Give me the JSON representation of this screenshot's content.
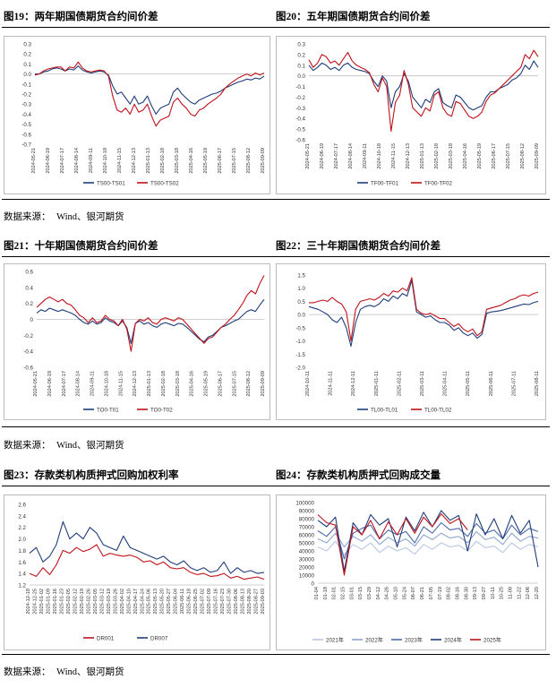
{
  "panels": [
    {
      "title": "图19：两年期国债期货合约间价差"
    },
    {
      "title": "图20：五年期国债期货合约间价差"
    },
    {
      "title": "图21：十年期国债期货合约间价差"
    },
    {
      "title": "图22：三十年期国债期货合约间价差"
    },
    {
      "title": "图23：存款类机构质押式回购加权利率"
    },
    {
      "title": "图24：存款类机构质押式回购成交量"
    }
  ],
  "sources": [
    {
      "label": "数据来源：",
      "text": "Wind、银河期货"
    },
    {
      "label": "数据来源：",
      "text": "Wind、银河期货"
    },
    {
      "label": "数据来源：",
      "text": "Wind、银河期货"
    }
  ],
  "colors": {
    "blue": "#1f3d7a",
    "red": "#c0121a",
    "lightblue": "#b8c7e3",
    "midblue": "#8ea6cf"
  },
  "chart_data": [
    {
      "type": "line",
      "title": "",
      "x_ticks": [
        "2024-05-21",
        "2024-06-19",
        "2024-07-17",
        "2024-08-14",
        "2024-09-11",
        "2024-10-18",
        "2024-11-15",
        "2024-12-13",
        "2025-01-13",
        "2025-02-18",
        "2025-03-18",
        "2025-04-16",
        "2025-05-19",
        "2025-06-17",
        "2025-07-15",
        "2025-08-12",
        "2025-09-09"
      ],
      "ylim": [
        -0.7,
        0.3
      ],
      "y_ticks": [
        "-0.7",
        "-0.6",
        "-0.5",
        "-0.4",
        "-0.3",
        "-0.2",
        "-0.1",
        "0.0",
        "0.1",
        "0.2",
        "0.3"
      ],
      "legend": "bottom",
      "series": [
        {
          "name": "TS00-TS01",
          "color": "#1f3d7a",
          "values": [
            0.0,
            0.0,
            0.02,
            0.03,
            0.05,
            0.06,
            0.05,
            0.03,
            0.05,
            0.04,
            0.08,
            0.04,
            0.02,
            0.01,
            0.02,
            0.03,
            0.02,
            -0.01,
            -0.12,
            -0.2,
            -0.18,
            -0.24,
            -0.3,
            -0.22,
            -0.3,
            -0.28,
            -0.22,
            -0.32,
            -0.4,
            -0.34,
            -0.32,
            -0.3,
            -0.18,
            -0.14,
            -0.2,
            -0.24,
            -0.28,
            -0.3,
            -0.26,
            -0.24,
            -0.22,
            -0.2,
            -0.19,
            -0.17,
            -0.14,
            -0.12,
            -0.1,
            -0.08,
            -0.07,
            -0.05,
            -0.06,
            -0.04,
            -0.05,
            -0.02
          ]
        },
        {
          "name": "TS00-TS02",
          "color": "#c0121a",
          "values": [
            -0.01,
            0.0,
            0.03,
            0.05,
            0.06,
            0.07,
            0.07,
            0.03,
            0.07,
            0.06,
            0.12,
            0.06,
            0.03,
            0.02,
            0.03,
            0.04,
            0.03,
            -0.02,
            -0.22,
            -0.36,
            -0.38,
            -0.34,
            -0.4,
            -0.3,
            -0.38,
            -0.36,
            -0.3,
            -0.42,
            -0.52,
            -0.46,
            -0.44,
            -0.42,
            -0.28,
            -0.24,
            -0.3,
            -0.34,
            -0.4,
            -0.42,
            -0.36,
            -0.34,
            -0.3,
            -0.27,
            -0.24,
            -0.2,
            -0.14,
            -0.1,
            -0.07,
            -0.04,
            -0.02,
            0.0,
            -0.02,
            0.01,
            -0.01,
            0.01
          ]
        }
      ]
    },
    {
      "type": "line",
      "title": "",
      "x_ticks": [
        "2024-05-21",
        "2024-06-19",
        "2024-07-17",
        "2024-08-14",
        "2024-09-11",
        "2024-10-18",
        "2024-11-15",
        "2024-12-13",
        "2025-01-13",
        "2025-02-18",
        "2025-03-18",
        "2025-04-16",
        "2025-05-19",
        "2025-06-17",
        "2025-07-15",
        "2025-08-12",
        "2025-09-09"
      ],
      "ylim": [
        -0.6,
        0.3
      ],
      "y_ticks": [
        "-0.6",
        "-0.5",
        "-0.4",
        "-0.3",
        "-0.2",
        "-0.1",
        "0.0",
        "0.1",
        "0.2",
        "0.3"
      ],
      "legend": "bottom",
      "series": [
        {
          "name": "TF00-TF01",
          "color": "#1f3d7a",
          "values": [
            0.1,
            0.05,
            0.08,
            0.12,
            0.1,
            0.06,
            0.08,
            0.05,
            0.1,
            0.12,
            0.08,
            0.06,
            0.05,
            0.04,
            0.02,
            -0.05,
            -0.1,
            0.0,
            -0.05,
            -0.3,
            -0.15,
            -0.1,
            0.02,
            -0.05,
            -0.2,
            -0.25,
            -0.3,
            -0.22,
            -0.25,
            -0.15,
            -0.12,
            -0.25,
            -0.28,
            -0.3,
            -0.18,
            -0.2,
            -0.25,
            -0.3,
            -0.32,
            -0.3,
            -0.28,
            -0.2,
            -0.15,
            -0.15,
            -0.12,
            -0.1,
            -0.08,
            -0.04,
            -0.02,
            0.02,
            0.1,
            0.06,
            0.14,
            0.08
          ]
        },
        {
          "name": "TF00-TF02",
          "color": "#c0121a",
          "values": [
            0.15,
            0.08,
            0.12,
            0.2,
            0.18,
            0.12,
            0.14,
            0.1,
            0.16,
            0.22,
            0.14,
            0.1,
            0.08,
            0.06,
            0.03,
            -0.08,
            -0.15,
            -0.02,
            -0.1,
            -0.52,
            -0.25,
            -0.18,
            0.05,
            -0.08,
            -0.3,
            -0.34,
            -0.38,
            -0.3,
            -0.33,
            -0.18,
            -0.15,
            -0.3,
            -0.36,
            -0.38,
            -0.24,
            -0.26,
            -0.32,
            -0.38,
            -0.4,
            -0.38,
            -0.34,
            -0.24,
            -0.18,
            -0.16,
            -0.12,
            -0.08,
            -0.04,
            0.0,
            0.04,
            0.08,
            0.2,
            0.16,
            0.24,
            0.18
          ]
        }
      ]
    },
    {
      "type": "line",
      "title": "",
      "x_ticks": [
        "2024-05-21",
        "2024-06-19",
        "2024-07-17",
        "2024-08-14",
        "2024-09-11",
        "2024-10-18",
        "2024-11-15",
        "2024-12-13",
        "2025-01-13",
        "2025-02-18",
        "2025-03-18",
        "2025-04-16",
        "2025-05-19",
        "2025-06-17",
        "2025-07-15",
        "2025-08-12",
        "2025-09-09"
      ],
      "ylim": [
        -0.6,
        0.6
      ],
      "y_ticks": [
        "-0.6",
        "-0.4",
        "-0.2",
        "0",
        "0.2",
        "0.4",
        "0.6"
      ],
      "legend": "bottom",
      "series": [
        {
          "name": "TO0-T01",
          "color": "#1f3d7a",
          "values": [
            0.08,
            0.12,
            0.1,
            0.14,
            0.12,
            0.1,
            0.12,
            0.1,
            0.08,
            0.05,
            0.0,
            -0.04,
            -0.06,
            -0.02,
            -0.06,
            -0.04,
            0.02,
            -0.02,
            -0.04,
            -0.08,
            -0.02,
            -0.1,
            -0.3,
            -0.05,
            -0.02,
            -0.06,
            -0.04,
            -0.08,
            -0.1,
            -0.06,
            -0.04,
            -0.06,
            -0.08,
            -0.05,
            -0.06,
            -0.1,
            -0.15,
            -0.2,
            -0.25,
            -0.28,
            -0.22,
            -0.2,
            -0.15,
            -0.1,
            -0.08,
            -0.05,
            -0.02,
            0.0,
            0.05,
            0.1,
            0.12,
            0.1,
            0.18,
            0.25
          ]
        },
        {
          "name": "TO0-T02",
          "color": "#c0121a",
          "values": [
            0.15,
            0.2,
            0.25,
            0.28,
            0.25,
            0.22,
            0.25,
            0.2,
            0.18,
            0.12,
            0.05,
            0.02,
            -0.04,
            0.02,
            -0.04,
            -0.02,
            0.05,
            0.0,
            -0.02,
            -0.08,
            0.0,
            -0.12,
            -0.4,
            -0.05,
            0.0,
            -0.02,
            0.02,
            -0.04,
            -0.06,
            0.0,
            0.02,
            0.0,
            -0.02,
            0.02,
            0.0,
            -0.06,
            -0.12,
            -0.18,
            -0.24,
            -0.3,
            -0.24,
            -0.22,
            -0.16,
            -0.1,
            -0.06,
            0.0,
            0.05,
            0.12,
            0.2,
            0.3,
            0.36,
            0.32,
            0.45,
            0.55
          ]
        }
      ]
    },
    {
      "type": "line",
      "title": "",
      "x_ticks": [
        "2024-10-11",
        "2024-11-11",
        "2024-12-11",
        "2025-01-11",
        "2025-02-11",
        "2025-03-11",
        "2025-04-11",
        "2025-05-11",
        "2025-06-11",
        "2025-07-11",
        "2025-08-11"
      ],
      "ylim": [
        -2.0,
        1.5
      ],
      "y_ticks": [
        "-2.0",
        "-1.5",
        "-1.0",
        "-0.5",
        "0.0",
        "0.5",
        "1.0",
        "1.5"
      ],
      "legend": "bottom",
      "series": [
        {
          "name": "TL00-TL01",
          "color": "#1f3d7a",
          "values": [
            0.3,
            0.25,
            0.2,
            0.1,
            0.0,
            -0.2,
            -0.3,
            -0.1,
            -0.5,
            -1.2,
            -0.3,
            0.2,
            0.3,
            0.35,
            0.3,
            0.4,
            0.6,
            0.5,
            0.7,
            0.6,
            0.8,
            0.7,
            1.3,
            0.1,
            0.0,
            -0.1,
            -0.05,
            -0.2,
            -0.3,
            -0.3,
            -0.4,
            -0.6,
            -0.5,
            -0.7,
            -0.8,
            -0.7,
            -0.9,
            -0.75,
            0.05,
            0.1,
            0.12,
            0.15,
            0.2,
            0.25,
            0.3,
            0.35,
            0.4,
            0.38,
            0.45,
            0.5
          ]
        },
        {
          "name": "TL00-TL02",
          "color": "#c0121a",
          "values": [
            0.45,
            0.45,
            0.5,
            0.55,
            0.5,
            0.65,
            0.5,
            0.4,
            0.1,
            -1.0,
            0.2,
            0.5,
            0.55,
            0.6,
            0.55,
            0.65,
            0.8,
            0.7,
            0.9,
            0.85,
            1.0,
            0.9,
            1.4,
            0.2,
            0.05,
            0.0,
            0.05,
            -0.05,
            -0.15,
            -0.15,
            -0.3,
            -0.45,
            -0.35,
            -0.55,
            -0.65,
            -0.55,
            -0.8,
            -0.65,
            0.2,
            0.25,
            0.3,
            0.35,
            0.45,
            0.55,
            0.6,
            0.7,
            0.75,
            0.7,
            0.8,
            0.85
          ]
        }
      ]
    },
    {
      "type": "line",
      "title": "",
      "x_ticks": [
        "2024-12-18",
        "2024-12-25",
        "2025-01-02",
        "2025-01-09",
        "2025-01-16",
        "2025-01-23",
        "2025-02-05",
        "2025-02-12",
        "2025-02-19",
        "2025-02-26",
        "2025-03-05",
        "2025-03-12",
        "2025-03-19",
        "2025-03-26",
        "2025-04-02",
        "2025-04-10",
        "2025-04-17",
        "2025-04-24",
        "2025-05-06",
        "2025-05-13",
        "2025-05-20",
        "2025-05-27",
        "2025-06-04",
        "2025-06-11",
        "2025-06-18",
        "2025-06-25",
        "2025-07-02",
        "2025-07-09",
        "2025-07-16",
        "2025-07-23",
        "2025-07-30",
        "2025-08-06",
        "2025-08-13",
        "2025-08-20",
        "2025-08-27",
        "2025-09-03"
      ],
      "ylim": [
        1.2,
        2.6
      ],
      "y_ticks": [
        "1.2",
        "1.4",
        "1.6",
        "1.8",
        "2.0",
        "2.2",
        "2.4",
        "2.6"
      ],
      "legend": "bottom",
      "series": [
        {
          "name": "DR001",
          "color": "#c0121a",
          "values": [
            1.4,
            1.35,
            1.5,
            1.38,
            1.55,
            1.8,
            1.75,
            1.85,
            1.78,
            1.82,
            1.9,
            1.7,
            1.75,
            1.72,
            1.7,
            1.72,
            1.68,
            1.6,
            1.62,
            1.55,
            1.6,
            1.5,
            1.48,
            1.5,
            1.42,
            1.38,
            1.4,
            1.35,
            1.36,
            1.4,
            1.32,
            1.35,
            1.3,
            1.32,
            1.34,
            1.3
          ]
        },
        {
          "name": "DR007",
          "color": "#1f3d7a",
          "values": [
            1.75,
            1.85,
            1.6,
            1.7,
            1.9,
            2.3,
            2.0,
            2.1,
            2.0,
            2.2,
            2.1,
            1.9,
            1.85,
            1.8,
            2.05,
            1.85,
            1.8,
            1.75,
            1.7,
            1.65,
            1.7,
            1.6,
            1.55,
            1.62,
            1.5,
            1.45,
            1.5,
            1.42,
            1.45,
            1.6,
            1.4,
            1.5,
            1.42,
            1.45,
            1.4,
            1.42
          ]
        }
      ]
    },
    {
      "type": "line",
      "title": "",
      "x_ticks": [
        "01-04",
        "01-18",
        "02-01",
        "02-15",
        "03-01",
        "03-15",
        "03-29",
        "04-12",
        "04-26",
        "05-10",
        "05-24",
        "06-07",
        "06-21",
        "07-05",
        "07-19",
        "08-02",
        "08-16",
        "08-30",
        "09-13",
        "09-27",
        "10-11",
        "10-25",
        "11-08",
        "11-22",
        "12-06",
        "12-20"
      ],
      "ylim": [
        0,
        100000
      ],
      "y_ticks": [
        "0",
        "10000",
        "20000",
        "30000",
        "40000",
        "50000",
        "60000",
        "70000",
        "80000",
        "90000",
        "100000"
      ],
      "legend": "bottom",
      "series": [
        {
          "name": "2021年",
          "color": "#b8c7e3",
          "values": [
            45000,
            40000,
            52000,
            35000,
            48000,
            42000,
            50000,
            38000,
            46000,
            40000,
            44000,
            36000,
            48000,
            42000,
            50000,
            45000,
            47000,
            40000,
            52000,
            44000,
            46000,
            38000,
            50000,
            42000,
            48000,
            45000
          ]
        },
        {
          "name": "2022年",
          "color": "#8ea6cf",
          "values": [
            55000,
            50000,
            62000,
            45000,
            58000,
            52000,
            60000,
            48000,
            57000,
            50000,
            55000,
            46000,
            60000,
            54000,
            62000,
            56000,
            58000,
            50000,
            64000,
            54000,
            57000,
            48000,
            62000,
            52000,
            58000,
            56000
          ]
        },
        {
          "name": "2023年",
          "color": "#4a6aa8",
          "values": [
            65000,
            58000,
            70000,
            30000,
            62000,
            68000,
            72000,
            55000,
            66000,
            60000,
            64000,
            50000,
            70000,
            62000,
            75000,
            66000,
            68000,
            58000,
            74000,
            62000,
            66000,
            55000,
            72000,
            60000,
            68000,
            64000
          ]
        },
        {
          "name": "2024年",
          "color": "#1f3d7a",
          "values": [
            78000,
            70000,
            82000,
            15000,
            75000,
            60000,
            85000,
            72000,
            80000,
            45000,
            82000,
            65000,
            88000,
            70000,
            90000,
            78000,
            84000,
            40000,
            86000,
            60000,
            80000,
            55000,
            84000,
            62000,
            78000,
            20000
          ]
        },
        {
          "name": "2025年",
          "color": "#c0121a",
          "values": [
            85000,
            75000,
            72000,
            10000,
            70000,
            60000,
            78000,
            55000,
            76000,
            60000,
            80000,
            62000,
            82000,
            70000,
            86000,
            74000,
            80000,
            66000,
            null,
            null,
            null,
            null,
            null,
            null,
            null,
            null
          ]
        }
      ]
    }
  ]
}
